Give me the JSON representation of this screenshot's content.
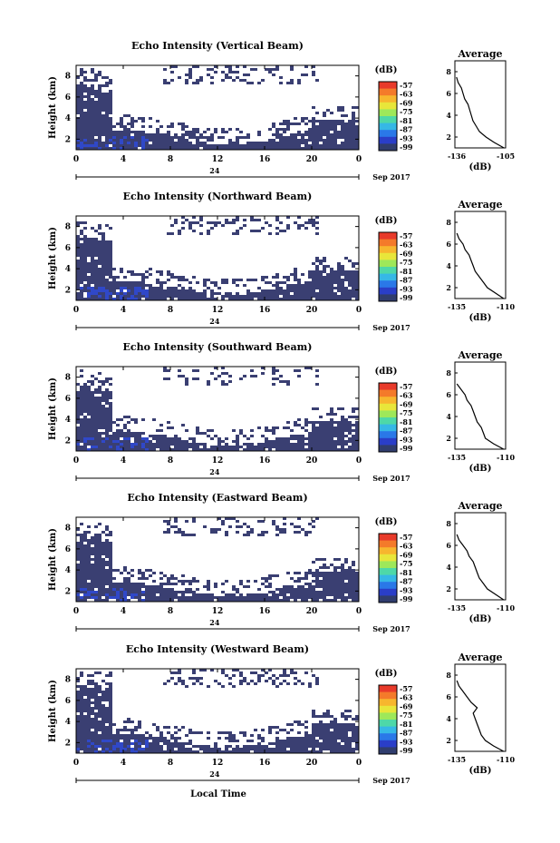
{
  "panels": [
    {
      "title": "Echo Intensity (Vertical Beam)",
      "profile_range": [
        -136,
        -105
      ],
      "xticks_profile": [
        "-136",
        "-105"
      ],
      "seed": 11
    },
    {
      "title": "Echo Intensity (Northward Beam)",
      "profile_range": [
        -135,
        -110
      ],
      "xticks_profile": [
        "-135",
        "-110"
      ],
      "seed": 23
    },
    {
      "title": "Echo Intensity (Southward Beam)",
      "profile_range": [
        -135,
        -110
      ],
      "xticks_profile": [
        "-135",
        "-110"
      ],
      "seed": 37
    },
    {
      "title": "Echo Intensity (Eastward Beam)",
      "profile_range": [
        -135,
        -110
      ],
      "xticks_profile": [
        "-135",
        "-110"
      ],
      "seed": 41
    },
    {
      "title": "Echo Intensity (Westward Beam)",
      "profile_range": [
        -135,
        -110
      ],
      "xticks_profile": [
        "-135",
        "-110"
      ],
      "seed": 53
    }
  ],
  "common": {
    "ylabel": "Height (km)",
    "yticks": [
      "2",
      "4",
      "6",
      "8"
    ],
    "xticks": [
      "0",
      "4",
      "8",
      "12",
      "16",
      "20",
      "0"
    ],
    "date_mid": "24",
    "date_label": "Sep 2017",
    "cb_unit": "(dB)",
    "cb_ticks": [
      "-57",
      "-63",
      "-69",
      "-75",
      "-81",
      "-87",
      "-93",
      "-99"
    ],
    "cb_colors": [
      "#e83a2a",
      "#f47a2a",
      "#f7b62e",
      "#e8e63a",
      "#9ee85a",
      "#4ed8a8",
      "#36b8e6",
      "#2a78e8",
      "#2a3ec8",
      "#303d6e"
    ],
    "profile_title": "Average",
    "profile_yticks": [
      "2",
      "4",
      "6",
      "8"
    ],
    "profile_xlabel": "(dB)",
    "xlabel": "Local Time"
  },
  "chart_data": [
    {
      "type": "heatmap",
      "title": "Echo Intensity (Vertical Beam)",
      "ylabel": "Height (km)",
      "xlabel": "Local Time",
      "x_range": [
        0,
        24
      ],
      "y_range": [
        1,
        9
      ],
      "colorbar": {
        "unit": "(dB)",
        "min": -99,
        "max": -57
      },
      "profile": {
        "title": "Average",
        "xlabel": "(dB)",
        "xlim": [
          -136,
          -105
        ],
        "height_km": [
          1.0,
          1.5,
          2.0,
          2.5,
          3.0,
          3.5,
          4.0,
          4.5,
          5.0,
          5.5,
          6.0,
          6.5,
          7.0,
          7.5
        ],
        "echo_db": [
          -106,
          -112,
          -117,
          -121,
          -123,
          -125,
          -126,
          -127,
          -128,
          -130,
          -131,
          -132,
          -134,
          -135
        ]
      }
    },
    {
      "type": "heatmap",
      "title": "Echo Intensity (Northward Beam)",
      "ylabel": "Height (km)",
      "xlabel": "Local Time",
      "x_range": [
        0,
        24
      ],
      "y_range": [
        1,
        9
      ],
      "colorbar": {
        "unit": "(dB)",
        "min": -99,
        "max": -57
      },
      "profile": {
        "title": "Average",
        "xlabel": "(dB)",
        "xlim": [
          -135,
          -110
        ],
        "height_km": [
          1.0,
          1.5,
          2.0,
          2.5,
          3.0,
          3.5,
          4.0,
          4.5,
          5.0,
          5.5,
          6.0,
          6.5,
          7.0
        ],
        "echo_db": [
          -111,
          -115,
          -119,
          -121,
          -123,
          -125,
          -126,
          -127,
          -128,
          -130,
          -131,
          -133,
          -134
        ]
      }
    },
    {
      "type": "heatmap",
      "title": "Echo Intensity (Southward Beam)",
      "ylabel": "Height (km)",
      "xlabel": "Local Time",
      "x_range": [
        0,
        24
      ],
      "y_range": [
        1,
        9
      ],
      "colorbar": {
        "unit": "(dB)",
        "min": -99,
        "max": -57
      },
      "profile": {
        "title": "Average",
        "xlabel": "(dB)",
        "xlim": [
          -135,
          -110
        ],
        "height_km": [
          1.0,
          1.5,
          2.0,
          2.5,
          3.0,
          3.5,
          4.0,
          4.5,
          5.0,
          5.5,
          6.0,
          6.5,
          7.0
        ],
        "echo_db": [
          -111,
          -116,
          -120,
          -121,
          -122,
          -124,
          -125,
          -126,
          -127,
          -129,
          -130,
          -132,
          -134
        ]
      }
    },
    {
      "type": "heatmap",
      "title": "Echo Intensity (Eastward Beam)",
      "ylabel": "Height (km)",
      "xlabel": "Local Time",
      "x_range": [
        0,
        24
      ],
      "y_range": [
        1,
        9
      ],
      "colorbar": {
        "unit": "(dB)",
        "min": -99,
        "max": -57
      },
      "profile": {
        "title": "Average",
        "xlabel": "(dB)",
        "xlim": [
          -135,
          -110
        ],
        "height_km": [
          1.0,
          1.5,
          2.0,
          2.5,
          3.0,
          3.5,
          4.0,
          4.5,
          5.0,
          5.5,
          6.0,
          6.5,
          7.0
        ],
        "echo_db": [
          -111,
          -115,
          -119,
          -121,
          -123,
          -124,
          -125,
          -126,
          -128,
          -129,
          -131,
          -133,
          -134
        ]
      }
    },
    {
      "type": "heatmap",
      "title": "Echo Intensity (Westward Beam)",
      "ylabel": "Height (km)",
      "xlabel": "Local Time",
      "x_range": [
        0,
        24
      ],
      "y_range": [
        1,
        9
      ],
      "colorbar": {
        "unit": "(dB)",
        "min": -99,
        "max": -57
      },
      "profile": {
        "title": "Average",
        "xlabel": "(dB)",
        "xlim": [
          -135,
          -110
        ],
        "height_km": [
          1.0,
          1.5,
          2.0,
          2.5,
          3.0,
          3.5,
          4.0,
          4.5,
          5.0,
          5.5,
          6.0,
          6.5,
          7.0,
          7.5
        ],
        "echo_db": [
          -111,
          -116,
          -120,
          -122,
          -123,
          -124,
          -125,
          -126,
          -124,
          -127,
          -129,
          -131,
          -133,
          -134
        ]
      }
    }
  ]
}
